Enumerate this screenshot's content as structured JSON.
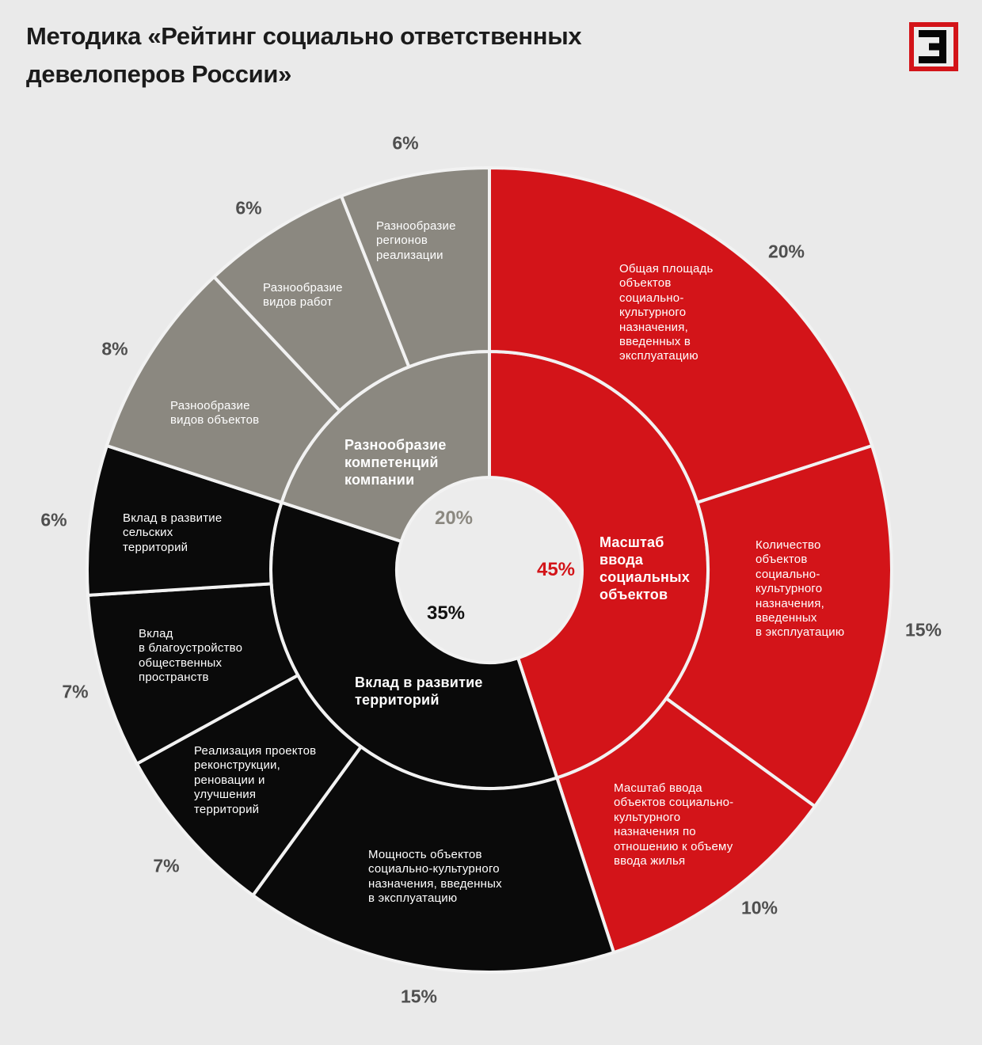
{
  "header": {
    "title": "Методика «Рейтинг социально ответственных\nдевелоперов России»",
    "logo": "expert-logo"
  },
  "chart_data": {
    "type": "sunburst",
    "title": "Методика «Рейтинг социально ответственных девелоперов России»",
    "units": "%",
    "start": "12 o'clock, clockwise",
    "legend_position": "in-segment labels",
    "palette": {
      "red": "#d31419",
      "black": "#0a0a0a",
      "gray": "#8b8880",
      "separator": "#f2f2f2",
      "hole": "#ececec",
      "background": "#eaeaea",
      "pct_text": "#4f4f4f"
    },
    "inner_ring": [
      {
        "name": "Масштаб ввода социальных объектов",
        "display": "Масштаб\nввода\nсоциальных\nобъектов",
        "value": 45,
        "pct": "45%",
        "color": "red"
      },
      {
        "name": "Вклад в развитие территорий",
        "display": "Вклад в развитие\nтерриторий",
        "value": 35,
        "pct": "35%",
        "color": "black"
      },
      {
        "name": "Разнообразие компетенций компании",
        "display": "Разнообразие\nкомпетенций\nкомпании",
        "value": 20,
        "pct": "20%",
        "color": "gray"
      }
    ],
    "outer_ring": [
      {
        "parent": "Масштаб ввода социальных объектов",
        "name": "Общая площадь объектов социально-культурного назначения, введенных в эксплуатацию",
        "display": "Общая площадь\nобъектов\nсоциально-\nкультурного\nназначения,\nвведенных в\nэксплуатацию",
        "value": 20,
        "pct": "20%",
        "color": "red"
      },
      {
        "parent": "Масштаб ввода социальных объектов",
        "name": "Количество объектов социально-культурного назначения, введенных в эксплуатацию",
        "display": "Количество\nобъектов\nсоциально-\nкультурного\nназначения,\nвведенных\nв эксплуатацию",
        "value": 15,
        "pct": "15%",
        "color": "red"
      },
      {
        "parent": "Масштаб ввода социальных объектов",
        "name": "Масштаб ввода объектов социально-культурного назначения по отношению к объему ввода жилья",
        "display": "Масштаб ввода\nобъектов социально-\nкультурного\nназначения по\nотношению к объему\nввода жилья",
        "value": 10,
        "pct": "10%",
        "color": "red"
      },
      {
        "parent": "Вклад в развитие территорий",
        "name": "Мощность объектов социально-культурного назначения, введенных в эксплуатацию",
        "display": "Мощность объектов\nсоциально-культурного\nназначения, введенных\nв эксплуатацию",
        "value": 15,
        "pct": "15%",
        "color": "black"
      },
      {
        "parent": "Вклад в развитие территорий",
        "name": "Реализация проектов реконструкции, реновации и улучшения территорий",
        "display": "Реализация проектов\nреконструкции,\nреновации и\nулучшения\nтерриторий",
        "value": 7,
        "pct": "7%",
        "color": "black"
      },
      {
        "parent": "Вклад в развитие территорий",
        "name": "Вклад в благоустройство общественных пространств",
        "display": "Вклад\nв благоустройство\nобщественных\nпространств",
        "value": 7,
        "pct": "7%",
        "color": "black"
      },
      {
        "parent": "Вклад в развитие территорий",
        "name": "Вклад в развитие сельских территорий",
        "display": "Вклад в развитие\nсельских\nтерриторий",
        "value": 6,
        "pct": "6%",
        "color": "black"
      },
      {
        "parent": "Разнообразие компетенций компании",
        "name": "Разнообразие видов объектов",
        "display": "Разнообразие\nвидов объектов",
        "value": 8,
        "pct": "8%",
        "color": "gray"
      },
      {
        "parent": "Разнообразие компетенций компании",
        "name": "Разнообразие видов работ",
        "display": "Разнообразие\nвидов работ",
        "value": 6,
        "pct": "6%",
        "color": "gray"
      },
      {
        "parent": "Разнообразие компетенций компании",
        "name": "Разнообразие регионов реализации",
        "display": "Разнообразие\nрегионов\nреализации",
        "value": 6,
        "pct": "6%",
        "color": "gray"
      }
    ]
  }
}
